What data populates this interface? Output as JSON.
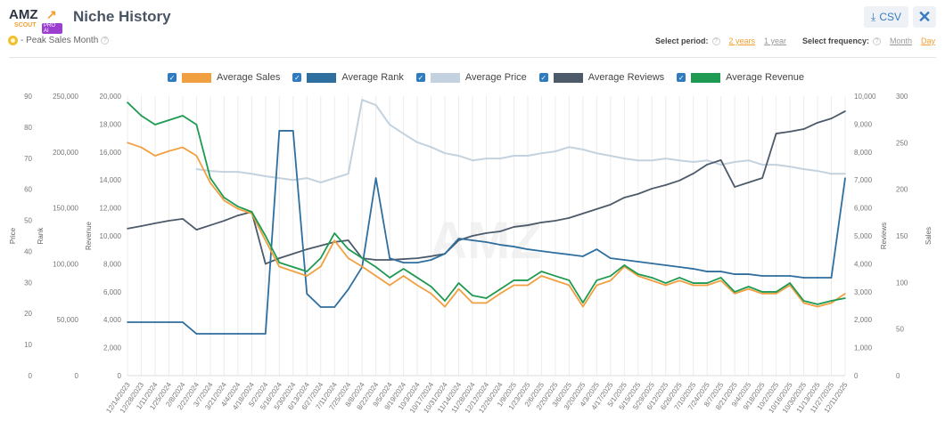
{
  "header": {
    "logo_text": "AMZ SCOUT PRO AI",
    "title": "Niche History",
    "peak_label": "- Peak Sales Month",
    "csv_label": "CSV",
    "close_label": "✕"
  },
  "controls": {
    "period_label": "Select period:",
    "period_options": [
      "2 years",
      "1 year"
    ],
    "period_selected": "2 years",
    "frequency_label": "Select frequency:",
    "frequency_options": [
      "Month",
      "Day"
    ],
    "frequency_selected": "Day"
  },
  "legend": [
    {
      "label": "Average Sales",
      "color": "#f0a040",
      "checked": true
    },
    {
      "label": "Average Rank",
      "color": "#2f6f9f",
      "checked": true
    },
    {
      "label": "Average Price",
      "color": "#c3d2de",
      "checked": true
    },
    {
      "label": "Average Reviews",
      "color": "#4c5a6a",
      "checked": true
    },
    {
      "label": "Average Revenue",
      "color": "#1f9a52",
      "checked": true
    }
  ],
  "chart_data": {
    "type": "line",
    "grid": "vertical",
    "axes": {
      "price": {
        "title": "Price",
        "side": "left",
        "range": [
          0,
          90
        ],
        "ticks": [
          "0",
          "10",
          "20",
          "30",
          "40",
          "50",
          "60",
          "70",
          "80",
          "90"
        ]
      },
      "rank": {
        "title": "Rank",
        "side": "left",
        "range": [
          0,
          250000
        ],
        "ticks": [
          "0",
          "50,000",
          "100,000",
          "150,000",
          "200,000",
          "250,000"
        ]
      },
      "revenue": {
        "title": "Revenue",
        "side": "left",
        "range": [
          0,
          20000
        ],
        "ticks": [
          "0",
          "2,000",
          "4,000",
          "6,000",
          "8,000",
          "10,000",
          "12,000",
          "14,000",
          "16,000",
          "18,000",
          "20,000"
        ]
      },
      "reviews": {
        "title": "Reviews",
        "side": "right",
        "range": [
          0,
          10000
        ],
        "ticks": [
          "0",
          "1,000",
          "2,000",
          "3,000",
          "4,000",
          "5,000",
          "6,000",
          "7,000",
          "8,000",
          "9,000",
          "10,000"
        ]
      },
      "sales": {
        "title": "Sales",
        "side": "right",
        "range": [
          0,
          300
        ],
        "ticks": [
          "0",
          "50",
          "100",
          "150",
          "200",
          "250",
          "300"
        ]
      }
    },
    "x": [
      "12/14/2023",
      "12/28/2023",
      "1/11/2024",
      "1/25/2024",
      "2/8/2024",
      "2/22/2024",
      "3/7/2024",
      "3/21/2024",
      "4/4/2024",
      "4/18/2024",
      "5/2/2024",
      "5/16/2024",
      "5/30/2024",
      "6/13/2024",
      "6/27/2024",
      "7/11/2024",
      "7/25/2024",
      "8/8/2024",
      "8/22/2024",
      "9/5/2024",
      "9/19/2024",
      "10/3/2024",
      "10/17/2024",
      "10/31/2024",
      "11/14/2024",
      "11/28/2024",
      "12/12/2024",
      "12/26/2024",
      "1/9/2025",
      "1/23/2025",
      "2/6/2025",
      "2/20/2025",
      "3/6/2025",
      "3/20/2025",
      "4/3/2025",
      "4/17/2025",
      "5/1/2025",
      "5/15/2025",
      "5/29/2025",
      "6/12/2025",
      "6/26/2025",
      "7/10/2025",
      "7/24/2025",
      "8/7/2025",
      "8/21/2025",
      "9/4/2025",
      "9/18/2025",
      "10/2/2025",
      "10/16/2025",
      "10/30/2025",
      "11/13/2025",
      "11/27/2025",
      "12/11/2025"
    ],
    "series": [
      {
        "name": "Average Price",
        "axis": "price",
        "color": "#c3d2de",
        "values": [
          null,
          null,
          null,
          null,
          null,
          66.5,
          65.9,
          65.6,
          65.6,
          65,
          64.2,
          63.6,
          63,
          63.6,
          62.2,
          63.6,
          65,
          88.8,
          87.1,
          80.8,
          77.9,
          75.1,
          73.6,
          71.6,
          70.8,
          69.3,
          69.9,
          69.9,
          70.8,
          70.8,
          71.6,
          72.2,
          73.6,
          72.8,
          71.6,
          70.8,
          69.9,
          69.3,
          69.3,
          69.9,
          69.3,
          68.8,
          69.3,
          67.9,
          68.8,
          69.3,
          67.9,
          67.9,
          67.3,
          66.5,
          65.9,
          65,
          65
        ]
      },
      {
        "name": "Average Reviews",
        "axis": "reviews",
        "color": "#4c5a6a",
        "values": [
          5260,
          5350,
          5450,
          5540,
          5610,
          5220,
          5380,
          5540,
          5730,
          5860,
          4000,
          4200,
          4360,
          4520,
          4650,
          4780,
          4840,
          4200,
          4140,
          4140,
          4170,
          4200,
          4270,
          4360,
          4840,
          5000,
          5100,
          5160,
          5320,
          5380,
          5480,
          5540,
          5640,
          5800,
          5960,
          6120,
          6370,
          6500,
          6690,
          6820,
          6980,
          7230,
          7550,
          7710,
          6750,
          6910,
          7070,
          8660,
          8730,
          8820,
          9050,
          9200,
          9460
        ]
      },
      {
        "name": "Average Rank",
        "axis": "rank",
        "color": "#2f6f9f",
        "values": [
          47800,
          47800,
          47800,
          47800,
          47800,
          37400,
          37400,
          37400,
          37400,
          37400,
          37400,
          219000,
          219000,
          73200,
          61300,
          61300,
          77200,
          97100,
          176700,
          105000,
          101000,
          101000,
          103500,
          109000,
          122600,
          121000,
          119400,
          117000,
          115400,
          113000,
          111400,
          109800,
          108300,
          106700,
          113000,
          105000,
          103500,
          101900,
          100300,
          98700,
          97100,
          95500,
          93100,
          93100,
          90700,
          90700,
          89200,
          89200,
          89200,
          87600,
          87600,
          87600,
          176700
        ]
      },
      {
        "name": "Average Sales",
        "axis": "sales",
        "color": "#f0a040",
        "values": [
          250,
          245,
          236,
          241,
          245,
          236,
          207,
          188,
          179,
          174,
          145,
          117,
          112,
          107,
          117,
          145,
          126,
          117,
          107,
          97,
          107,
          97,
          88,
          74,
          93,
          78,
          78,
          88,
          97,
          97,
          107,
          102,
          97,
          74,
          97,
          102,
          117,
          107,
          102,
          97,
          102,
          97,
          97,
          102,
          88,
          93,
          88,
          88,
          97,
          78,
          74,
          78,
          88
        ]
      },
      {
        "name": "Average Revenue",
        "axis": "revenue",
        "color": "#1f9a52",
        "values": [
          19550,
          18600,
          17960,
          18280,
          18600,
          17960,
          14140,
          12740,
          12100,
          11720,
          10000,
          8090,
          7770,
          7450,
          8410,
          10190,
          9050,
          8410,
          7770,
          7010,
          7640,
          7010,
          6370,
          5350,
          6620,
          5730,
          5540,
          6180,
          6820,
          6820,
          7450,
          7130,
          6820,
          5220,
          6820,
          7130,
          7900,
          7260,
          7010,
          6620,
          7010,
          6620,
          6620,
          7010,
          5990,
          6370,
          5990,
          5990,
          6620,
          5350,
          5100,
          5350,
          5540
        ]
      }
    ]
  }
}
